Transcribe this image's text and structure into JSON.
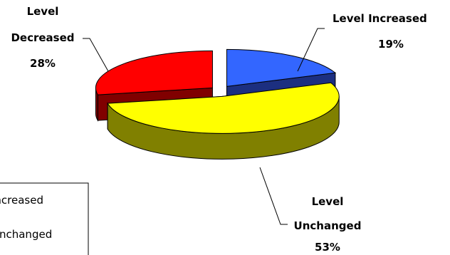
{
  "chart_data": {
    "type": "pie",
    "style": "3d-exploded",
    "slices": [
      {
        "label_line1": "Level",
        "label_line2": "Increased",
        "pct_text": "19%",
        "value": 19,
        "color": "#3366ff",
        "side_color": "#1c2f80"
      },
      {
        "label_line1": "Level",
        "label_line2": "Unchanged",
        "pct_text": "53%",
        "value": 53,
        "color": "#ffff00",
        "side_color": "#808000"
      },
      {
        "label_line1": "Level",
        "label_line2": "Decreased",
        "pct_text": "28%",
        "value": 28,
        "color": "#ff0000",
        "side_color": "#800000"
      }
    ],
    "legend": {
      "placement": "bottom-left",
      "items": [
        "Increased",
        "Unchanged"
      ]
    }
  }
}
